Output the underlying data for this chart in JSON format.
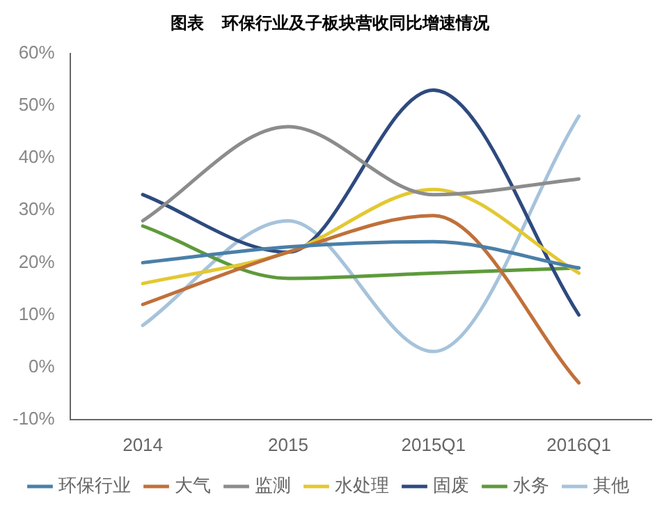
{
  "chart_data": {
    "type": "line",
    "title": "图表   环保行业及子板块营收同比增速情况",
    "categories": [
      "2014",
      "2015",
      "2015Q1",
      "2016Q1"
    ],
    "series": [
      {
        "name": "环保行业",
        "color": "#4a7fa8",
        "values": [
          20,
          23,
          24,
          19
        ]
      },
      {
        "name": "大气",
        "color": "#c0703a",
        "values": [
          12,
          22,
          29,
          -3
        ]
      },
      {
        "name": "监测",
        "color": "#8c8c8c",
        "values": [
          28,
          46,
          33,
          36
        ]
      },
      {
        "name": "水处理",
        "color": "#e3c832",
        "values": [
          16,
          22,
          34,
          18
        ]
      },
      {
        "name": "固废",
        "color": "#2e4a7e",
        "values": [
          33,
          22,
          53,
          10
        ]
      },
      {
        "name": "水务",
        "color": "#5e9a3c",
        "values": [
          27,
          17,
          18,
          19
        ]
      },
      {
        "name": "其他",
        "color": "#a6c3db",
        "values": [
          8,
          28,
          3,
          48
        ]
      }
    ],
    "ylim": [
      -10,
      60
    ],
    "yticks": [
      {
        "value": -10,
        "label": "-10%"
      },
      {
        "value": 0,
        "label": "0%"
      },
      {
        "value": 10,
        "label": "10%"
      },
      {
        "value": 20,
        "label": "20%"
      },
      {
        "value": 30,
        "label": "30%"
      },
      {
        "value": 40,
        "label": "40%"
      },
      {
        "value": 50,
        "label": "50%"
      },
      {
        "value": 60,
        "label": "60%"
      }
    ],
    "grid": false,
    "legend": "bottom",
    "marker": "none",
    "line_style": "solid"
  }
}
